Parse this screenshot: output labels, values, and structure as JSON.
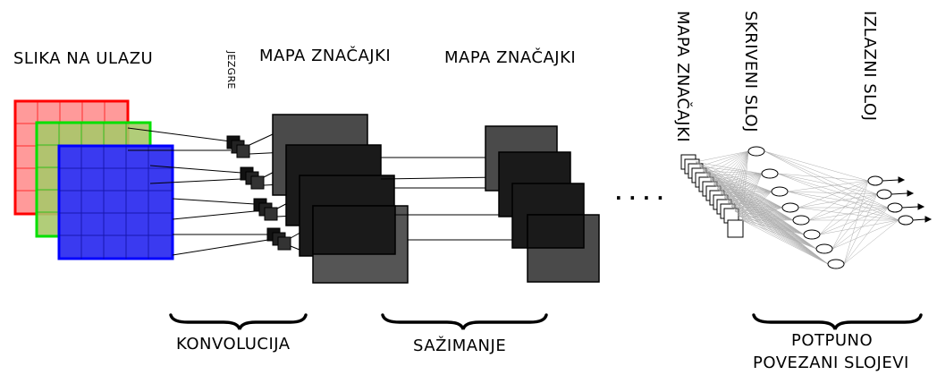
{
  "labels": {
    "input_image": "SLIKA NA ULAZU",
    "kernels": "JEZGRE",
    "feature_map_1": "MAPA ZNAČAJKI",
    "feature_map_2": "MAPA ZNAČAJKI",
    "feature_map_3": "MAPA ZNAČAJKI",
    "hidden_layer": "SKRIVENI SLOJ",
    "output_layer": "IZLAZNI SLOJ",
    "convolution": "KONVOLUCIJA",
    "pooling": "SAŽIMANJE",
    "fully_connected_line1": "POTPUNO",
    "fully_connected_line2": "POVEZANI SLOJEVI",
    "ellipsis": ". . . ."
  },
  "colors": {
    "input_red": "#ff0000",
    "input_green": "#00e000",
    "input_blue": "#0000ff",
    "feature_map_dark": "#1a1a1a",
    "feature_map_gray": "#555555"
  }
}
